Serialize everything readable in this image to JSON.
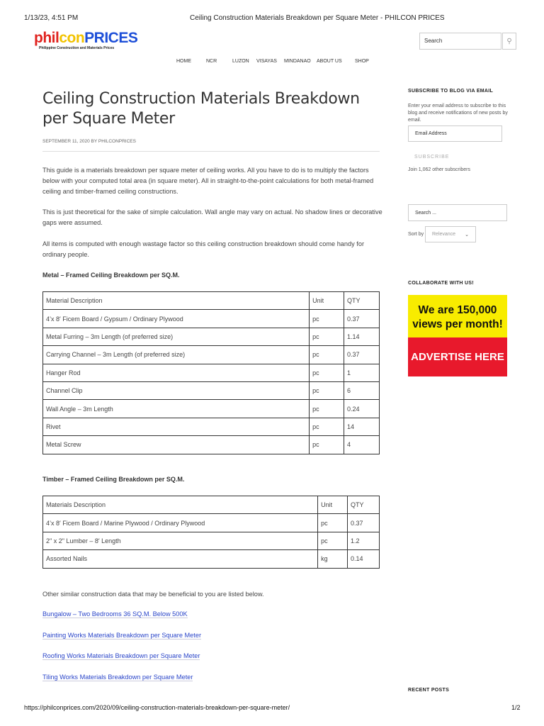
{
  "print_header": {
    "datetime": "1/13/23, 4:51 PM",
    "title": "Ceiling Construction Materials Breakdown per Square Meter - PHILCON PRICES"
  },
  "logo": {
    "part1": "phil",
    "part2": "con",
    "part3": "PRICES",
    "tagline": "Philippine Construction and Materials Prices"
  },
  "header_search": {
    "placeholder": "Search",
    "icon": "search-icon"
  },
  "nav": [
    "HOME",
    "NCR",
    "LUZON",
    "VISAYAS",
    "MINDANAO",
    "ABOUT US",
    "SHOP"
  ],
  "article": {
    "title": "Ceiling Construction Materials Breakdown per Square Meter",
    "meta": "SEPTEMBER 11, 2020 BY PHILCONPRICES",
    "paragraphs": [
      "This guide is a materials breakdown per square meter of ceiling works. All you have to do is to multiply the factors below with your computed total area (in square meter). All in straight-to-the-point calculations for both metal-framed ceiling and timber-framed ceiling constructions.",
      "This is just theoretical for the sake of simple calculation. Wall angle may vary on actual. No shadow lines or decorative gaps were assumed.",
      "All items is computed with enough wastage factor so this ceiling construction breakdown should come handy for ordinary people."
    ],
    "metal_heading": "Metal – Framed Ceiling Breakdown per SQ.M.",
    "metal_table": [
      [
        "Material Description",
        "Unit",
        "QTY"
      ],
      [
        "4’x 8′ Ficem Board / Gypsum / Ordinary Plywood",
        "pc",
        "0.37"
      ],
      [
        "Metal Furring – 3m Length (of preferred size)",
        "pc",
        "1.14"
      ],
      [
        "Carrying Channel – 3m Length (of preferred size)",
        "pc",
        "0.37"
      ],
      [
        "Hanger Rod",
        "pc",
        "1"
      ],
      [
        "Channel Clip",
        "pc",
        "6"
      ],
      [
        "Wall Angle – 3m Length",
        "pc",
        "0.24"
      ],
      [
        "Rivet",
        "pc",
        "14"
      ],
      [
        "Metal Screw",
        "pc",
        "4"
      ]
    ],
    "timber_heading": "Timber – Framed Ceiling Breakdown per SQ.M.",
    "timber_table": [
      [
        "Materials Description",
        "Unit",
        "QTY"
      ],
      [
        "4’x 8′ Ficem Board / Marine Plywood / Ordinary Plywood",
        "pc",
        "0.37"
      ],
      [
        "2\" x 2\" Lumber – 8′ Length",
        "pc",
        "1.2"
      ],
      [
        "Assorted Nails",
        "kg",
        "0.14"
      ]
    ],
    "related_intro": "Other similar construction data that may be beneficial to you are listed below.",
    "related_links": [
      "Bungalow – Two Bedrooms 36 SQ.M. Below 500K",
      "Painting Works Materials Breakdown per Square Meter",
      "Roofing Works Materials Breakdown per Square Meter",
      "Tiling Works Materials Breakdown per Square Meter"
    ]
  },
  "sidebar": {
    "subscribe_heading": "SUBSCRIBE TO BLOG VIA EMAIL",
    "subscribe_text": "Enter your email address to subscribe to this blog and receive notifications of new posts by email.",
    "email_placeholder": "Email Address",
    "subscribe_button": "SUBSCRIBE",
    "subscribers": "Join 1,062 other subscribers",
    "search_placeholder": "Search ...",
    "sort_label": "Sort by",
    "sort_value": "Relevance",
    "collab_heading": "COLLABORATE WITH US!",
    "ad_top": "We are 150,000 views per month!",
    "ad_bottom": "ADVERTISE HERE",
    "recent_heading": "RECENT POSTS"
  },
  "print_footer": {
    "url": "https://philconprices.com/2020/09/ceiling-construction-materials-breakdown-per-square-meter/",
    "page": "1/2"
  }
}
